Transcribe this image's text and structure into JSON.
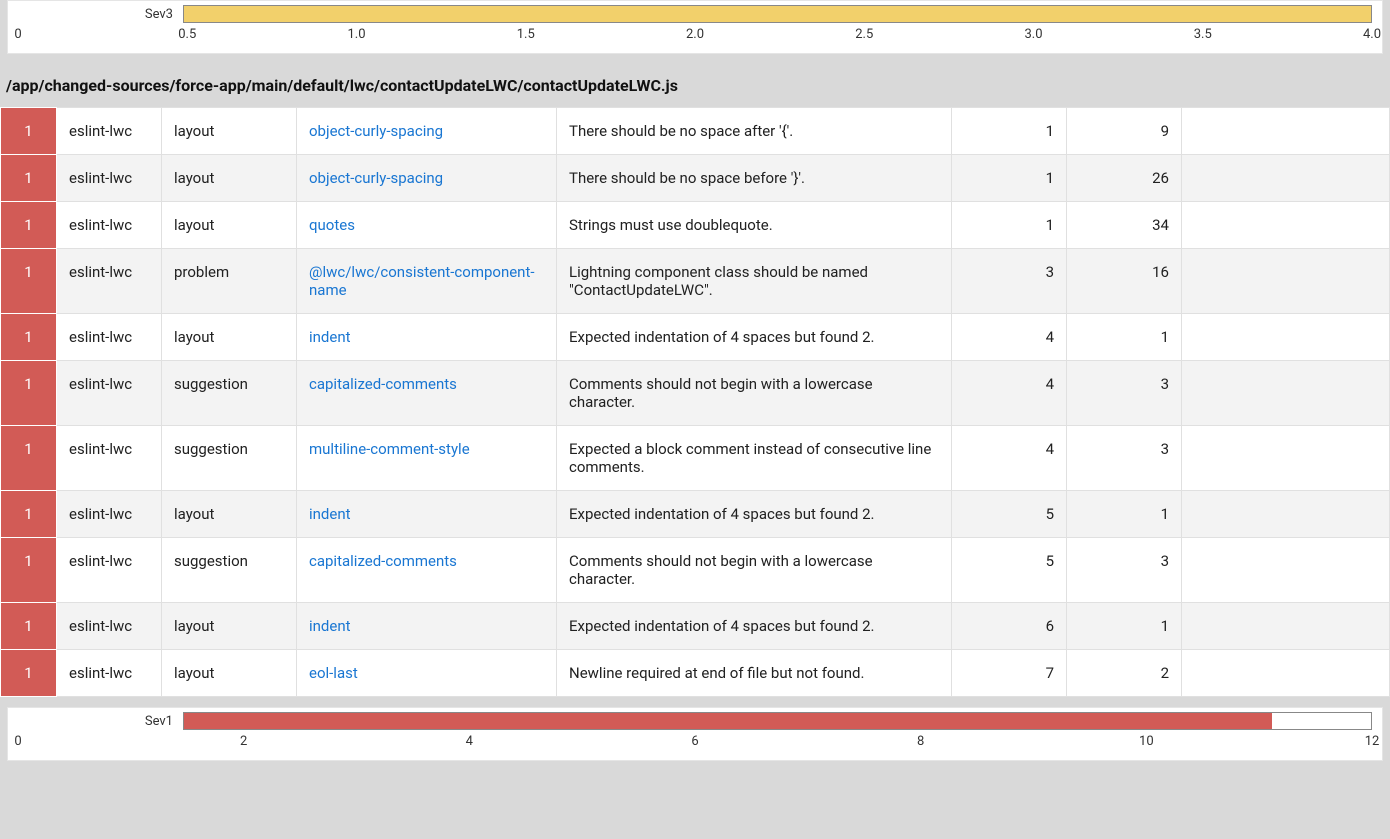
{
  "top_chart": {
    "type": "bar",
    "label": "Sev3",
    "value": 4.0,
    "max": 4.0,
    "ticks": [
      "0",
      "0.5",
      "1.0",
      "1.5",
      "2.0",
      "2.5",
      "3.0",
      "3.5",
      "4.0"
    ],
    "bar_color": "#f2d06b",
    "track_border": "#888888",
    "background": "#ffffff"
  },
  "file_path": "/app/changed-sources/force-app/main/default/lwc/contactUpdateLWC/contactUpdateLWC.js",
  "violations": {
    "severity_cell_color": "#d25b56",
    "link_color": "#1976d2",
    "row_alt_bg": "#f3f3f3",
    "rows": [
      {
        "sev": "1",
        "engine": "eslint-lwc",
        "category": "layout",
        "rule": "object-curly-spacing",
        "desc": "There should be no space after '{'.",
        "line": "1",
        "col": "9"
      },
      {
        "sev": "1",
        "engine": "eslint-lwc",
        "category": "layout",
        "rule": "object-curly-spacing",
        "desc": "There should be no space before '}'.",
        "line": "1",
        "col": "26"
      },
      {
        "sev": "1",
        "engine": "eslint-lwc",
        "category": "layout",
        "rule": "quotes",
        "desc": "Strings must use doublequote.",
        "line": "1",
        "col": "34"
      },
      {
        "sev": "1",
        "engine": "eslint-lwc",
        "category": "problem",
        "rule": "@lwc/lwc/consistent-component-name",
        "desc": "Lightning component class should be named \"ContactUpdateLWC\".",
        "line": "3",
        "col": "16"
      },
      {
        "sev": "1",
        "engine": "eslint-lwc",
        "category": "layout",
        "rule": "indent",
        "desc": "Expected indentation of 4 spaces but found 2.",
        "line": "4",
        "col": "1"
      },
      {
        "sev": "1",
        "engine": "eslint-lwc",
        "category": "suggestion",
        "rule": "capitalized-comments",
        "desc": "Comments should not begin with a lowercase character.",
        "line": "4",
        "col": "3"
      },
      {
        "sev": "1",
        "engine": "eslint-lwc",
        "category": "suggestion",
        "rule": "multiline-comment-style",
        "desc": "Expected a block comment instead of consecutive line comments.",
        "line": "4",
        "col": "3"
      },
      {
        "sev": "1",
        "engine": "eslint-lwc",
        "category": "layout",
        "rule": "indent",
        "desc": "Expected indentation of 4 spaces but found 2.",
        "line": "5",
        "col": "1"
      },
      {
        "sev": "1",
        "engine": "eslint-lwc",
        "category": "suggestion",
        "rule": "capitalized-comments",
        "desc": "Comments should not begin with a lowercase character.",
        "line": "5",
        "col": "3"
      },
      {
        "sev": "1",
        "engine": "eslint-lwc",
        "category": "layout",
        "rule": "indent",
        "desc": "Expected indentation of 4 spaces but found 2.",
        "line": "6",
        "col": "1"
      },
      {
        "sev": "1",
        "engine": "eslint-lwc",
        "category": "layout",
        "rule": "eol-last",
        "desc": "Newline required at end of file but not found.",
        "line": "7",
        "col": "2"
      }
    ]
  },
  "bottom_chart": {
    "type": "bar",
    "label": "Sev1",
    "value": 11,
    "max": 12,
    "ticks": [
      "0",
      "2",
      "4",
      "6",
      "8",
      "10",
      "12"
    ],
    "bar_color": "#d25b56",
    "track_border": "#888888",
    "background": "#ffffff"
  }
}
